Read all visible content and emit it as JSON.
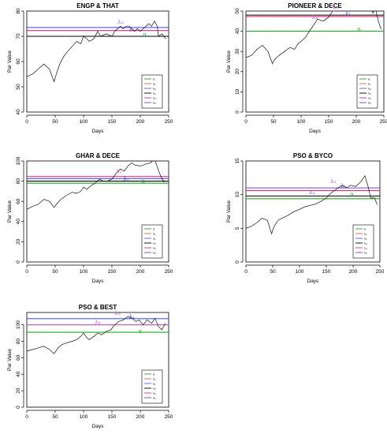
{
  "figure": {
    "width": 491,
    "height": 550
  },
  "chart_data": [
    {
      "type": "line",
      "title": "ENGP & THAT",
      "xlabel": "Days",
      "ylabel": "Par Value",
      "xlim": [
        0,
        250
      ],
      "ylim": [
        40,
        80
      ],
      "xticks": [
        0,
        50,
        100,
        150,
        200,
        250
      ],
      "yticks": [
        40,
        50,
        60,
        70,
        80
      ],
      "series": [
        {
          "values": [
            [
              0,
              54
            ],
            [
              10,
              55
            ],
            [
              20,
              57
            ],
            [
              30,
              59
            ],
            [
              40,
              57
            ],
            [
              48,
              52
            ],
            [
              52,
              55
            ],
            [
              58,
              59
            ],
            [
              65,
              62
            ],
            [
              72,
              64
            ],
            [
              80,
              66
            ],
            [
              88,
              68
            ],
            [
              95,
              67
            ],
            [
              100,
              70
            ],
            [
              106,
              69
            ],
            [
              110,
              68
            ],
            [
              118,
              69
            ],
            [
              125,
              72
            ],
            [
              130,
              70
            ],
            [
              140,
              71
            ],
            [
              150,
              70
            ],
            [
              155,
              72
            ],
            [
              160,
              73
            ],
            [
              165,
              74
            ],
            [
              170,
              73
            ],
            [
              175,
              74
            ],
            [
              180,
              74
            ],
            [
              185,
              73
            ],
            [
              190,
              72
            ],
            [
              195,
              73
            ],
            [
              200,
              72
            ],
            [
              205,
              73
            ],
            [
              210,
              74
            ],
            [
              215,
              75
            ],
            [
              220,
              74
            ],
            [
              225,
              76
            ],
            [
              230,
              74
            ],
            [
              232,
              70
            ],
            [
              238,
              71
            ],
            [
              245,
              69
            ]
          ]
        }
      ],
      "hlines": [
        {
          "y": 73.5,
          "color": "#5555ff"
        },
        {
          "y": 72.3,
          "color": "#dd2b85"
        },
        {
          "y": 70.0,
          "color": "#000000"
        }
      ],
      "annotations": [
        {
          "x": 165,
          "y": 75,
          "text": "λ₃",
          "color": "#c64ac6"
        },
        {
          "x": 185,
          "y": 72,
          "text": "λ₁",
          "color": "#2b2bcc"
        },
        {
          "x": 208,
          "y": 70,
          "text": "α",
          "color": "#22aa22"
        }
      ],
      "legend": {
        "position": "bottom-right",
        "entries": [
          "α",
          "λ₁",
          "λ₂",
          "λ₃",
          "λ₄",
          "λ₅"
        ],
        "colors": [
          "#22aa22",
          "#ee5555",
          "#5555ff",
          "#000000",
          "#dd2b85",
          "#7a3fcf"
        ]
      }
    },
    {
      "type": "line",
      "title": "PIONEER & DECE",
      "xlabel": "Days",
      "ylabel": "Par Value",
      "xlim": [
        0,
        250
      ],
      "ylim": [
        0,
        50
      ],
      "xticks": [
        0,
        50,
        100,
        150,
        200,
        250
      ],
      "yticks": [
        0,
        10,
        20,
        30,
        40,
        50
      ],
      "series": [
        {
          "values": [
            [
              0,
              27
            ],
            [
              10,
              28
            ],
            [
              20,
              31
            ],
            [
              30,
              33
            ],
            [
              40,
              30
            ],
            [
              48,
              24
            ],
            [
              52,
              26
            ],
            [
              60,
              28
            ],
            [
              70,
              30
            ],
            [
              80,
              32
            ],
            [
              88,
              31
            ],
            [
              95,
              34
            ],
            [
              100,
              35
            ],
            [
              108,
              37
            ],
            [
              115,
              40
            ],
            [
              120,
              42
            ],
            [
              125,
              44
            ],
            [
              130,
              46
            ],
            [
              140,
              45
            ],
            [
              150,
              47
            ],
            [
              155,
              49
            ],
            [
              160,
              52
            ],
            [
              168,
              50
            ],
            [
              175,
              53
            ],
            [
              180,
              52
            ],
            [
              188,
              51
            ],
            [
              195,
              50
            ],
            [
              200,
              51
            ],
            [
              210,
              50
            ],
            [
              218,
              52
            ],
            [
              225,
              55
            ],
            [
              230,
              49
            ],
            [
              235,
              51
            ],
            [
              240,
              45
            ],
            [
              245,
              41
            ]
          ]
        }
      ],
      "hlines": [
        {
          "y": 48.0,
          "color": "#000000"
        },
        {
          "y": 47.3,
          "color": "#dd2b85"
        },
        {
          "y": 40.0,
          "color": "#22aa22"
        }
      ],
      "annotations": [
        {
          "x": 125,
          "y": 46,
          "text": "λ₄",
          "color": "#c64ac6"
        },
        {
          "x": 163,
          "y": 51,
          "text": "λ₃",
          "color": "#c64ac6"
        },
        {
          "x": 185,
          "y": 48,
          "text": "λ₁",
          "color": "#2b2bcc"
        },
        {
          "x": 205,
          "y": 40,
          "text": "α",
          "color": "#22aa22"
        }
      ],
      "legend": {
        "position": "bottom-right",
        "entries": [
          "α",
          "λ₁",
          "λ₂",
          "λ₃",
          "λ₄",
          "λ₅"
        ],
        "colors": [
          "#22aa22",
          "#ee5555",
          "#5555ff",
          "#000000",
          "#dd2b85",
          "#7a3fcf"
        ]
      }
    },
    {
      "type": "line",
      "title": "GHAR & DECE",
      "xlabel": "Days",
      "ylabel": "Par Value",
      "xlim": [
        0,
        250
      ],
      "ylim": [
        0,
        100
      ],
      "xticks": [
        0,
        50,
        100,
        150,
        200,
        250
      ],
      "yticks": [
        0,
        20,
        40,
        60,
        80,
        100
      ],
      "series": [
        {
          "values": [
            [
              0,
              52
            ],
            [
              10,
              55
            ],
            [
              20,
              57
            ],
            [
              30,
              62
            ],
            [
              40,
              60
            ],
            [
              48,
              54
            ],
            [
              52,
              57
            ],
            [
              60,
              62
            ],
            [
              70,
              66
            ],
            [
              80,
              69
            ],
            [
              88,
              68
            ],
            [
              95,
              70
            ],
            [
              100,
              74
            ],
            [
              106,
              72
            ],
            [
              112,
              75
            ],
            [
              120,
              78
            ],
            [
              128,
              82
            ],
            [
              135,
              80
            ],
            [
              142,
              80
            ],
            [
              150,
              82
            ],
            [
              158,
              88
            ],
            [
              165,
              92
            ],
            [
              172,
              90
            ],
            [
              178,
              95
            ],
            [
              185,
              98
            ],
            [
              190,
              96
            ],
            [
              200,
              95
            ],
            [
              210,
              97
            ],
            [
              218,
              98
            ],
            [
              225,
              102
            ],
            [
              230,
              94
            ],
            [
              236,
              85
            ],
            [
              242,
              79
            ]
          ]
        }
      ],
      "hlines": [
        {
          "y": 84.5,
          "color": "#dd2b85"
        },
        {
          "y": 82.5,
          "color": "#5555ff"
        },
        {
          "y": 80.0,
          "color": "#000000"
        },
        {
          "y": 78.0,
          "color": "#22aa22"
        }
      ],
      "annotations": [
        {
          "x": 162,
          "y": 88,
          "text": "λ₃",
          "color": "#c64ac6"
        },
        {
          "x": 175,
          "y": 81,
          "text": "λ₁",
          "color": "#2b2bcc"
        },
        {
          "x": 205,
          "y": 78,
          "text": "α",
          "color": "#22aa22"
        }
      ],
      "legend": {
        "position": "bottom-right",
        "entries": [
          "α",
          "λ₁",
          "λ₂",
          "λ₃",
          "λ₄",
          "λ₅"
        ],
        "colors": [
          "#22aa22",
          "#ee5555",
          "#5555ff",
          "#000000",
          "#dd2b85",
          "#7a3fcf"
        ]
      }
    },
    {
      "type": "line",
      "title": "PSO & BYCO",
      "xlabel": "Days",
      "ylabel": "Par Value",
      "xlim": [
        0,
        250
      ],
      "ylim": [
        0,
        15
      ],
      "xticks": [
        0,
        50,
        100,
        150,
        200,
        250
      ],
      "yticks": [
        0,
        5,
        10,
        15
      ],
      "series": [
        {
          "values": [
            [
              0,
              5
            ],
            [
              10,
              5.3
            ],
            [
              20,
              5.8
            ],
            [
              30,
              6.5
            ],
            [
              40,
              6.2
            ],
            [
              48,
              4.2
            ],
            [
              52,
              5.2
            ],
            [
              60,
              6.2
            ],
            [
              70,
              6.6
            ],
            [
              80,
              7.0
            ],
            [
              90,
              7.5
            ],
            [
              100,
              7.8
            ],
            [
              110,
              8.2
            ],
            [
              120,
              8.4
            ],
            [
              130,
              8.6
            ],
            [
              140,
              9.0
            ],
            [
              150,
              9.5
            ],
            [
              158,
              10.2
            ],
            [
              165,
              10.6
            ],
            [
              172,
              11.0
            ],
            [
              180,
              11.4
            ],
            [
              188,
              11.0
            ],
            [
              195,
              11.4
            ],
            [
              205,
              11.2
            ],
            [
              215,
              12.0
            ],
            [
              222,
              12.8
            ],
            [
              228,
              11.2
            ],
            [
              233,
              9.5
            ],
            [
              240,
              9.5
            ],
            [
              245,
              8.5
            ]
          ]
        }
      ],
      "hlines": [
        {
          "y": 11.0,
          "color": "#7a3fcf"
        },
        {
          "y": 10.6,
          "color": "#dd2b85"
        },
        {
          "y": 9.8,
          "color": "#000000"
        },
        {
          "y": 9.4,
          "color": "#22aa22"
        }
      ],
      "annotations": [
        {
          "x": 123,
          "y": 10.1,
          "text": "λ₄",
          "color": "#c64ac6"
        },
        {
          "x": 163,
          "y": 11.7,
          "text": "λ₃",
          "color": "#c64ac6"
        },
        {
          "x": 182,
          "y": 11.0,
          "text": "λ₁",
          "color": "#2b2bcc"
        },
        {
          "x": 198,
          "y": 9.8,
          "text": "α",
          "color": "#22aa22"
        }
      ],
      "legend": {
        "position": "bottom-right",
        "entries": [
          "α",
          "λ₁",
          "λ₂",
          "λ₃",
          "λ₄",
          "λ₅"
        ],
        "colors": [
          "#22aa22",
          "#ee5555",
          "#5555ff",
          "#000000",
          "#dd2b85",
          "#7a3fcf"
        ]
      }
    },
    {
      "type": "line",
      "title": "PSO & BEST",
      "xlabel": "Days",
      "ylabel": "Par Value",
      "xlim": [
        0,
        250
      ],
      "ylim": [
        0,
        115
      ],
      "xticks": [
        0,
        50,
        100,
        150,
        200,
        250
      ],
      "yticks": [
        0,
        20,
        40,
        60,
        80,
        100
      ],
      "series": [
        {
          "values": [
            [
              0,
              68
            ],
            [
              10,
              70
            ],
            [
              20,
              72
            ],
            [
              30,
              74
            ],
            [
              40,
              70
            ],
            [
              48,
              65
            ],
            [
              55,
              72
            ],
            [
              62,
              76
            ],
            [
              70,
              78
            ],
            [
              80,
              80
            ],
            [
              88,
              82
            ],
            [
              95,
              86
            ],
            [
              100,
              90
            ],
            [
              105,
              85
            ],
            [
              110,
              82
            ],
            [
              118,
              86
            ],
            [
              125,
              90
            ],
            [
              132,
              88
            ],
            [
              140,
              92
            ],
            [
              148,
              94
            ],
            [
              155,
              100
            ],
            [
              162,
              104
            ],
            [
              170,
              106
            ],
            [
              178,
              110
            ],
            [
              186,
              108
            ],
            [
              192,
              104
            ],
            [
              198,
              106
            ],
            [
              205,
              100
            ],
            [
              212,
              106
            ],
            [
              220,
              102
            ],
            [
              226,
              108
            ],
            [
              232,
              98
            ],
            [
              238,
              94
            ],
            [
              244,
              102
            ]
          ]
        }
      ],
      "hlines": [
        {
          "y": 107.5,
          "color": "#5555ff"
        },
        {
          "y": 100.0,
          "color": "#c64ac6"
        },
        {
          "y": 91.0,
          "color": "#22aa22"
        }
      ],
      "annotations": [
        {
          "x": 125,
          "y": 101,
          "text": "λ₄",
          "color": "#c64ac6"
        },
        {
          "x": 160,
          "y": 112,
          "text": "λ₃",
          "color": "#c64ac6"
        },
        {
          "x": 185,
          "y": 108,
          "text": "λ₁",
          "color": "#2b2bcc"
        },
        {
          "x": 200,
          "y": 90,
          "text": "α",
          "color": "#22aa22"
        }
      ],
      "legend": {
        "position": "bottom-right",
        "entries": [
          "α",
          "λ₁",
          "λ₂",
          "λ₃",
          "λ₄",
          "λ₅"
        ],
        "colors": [
          "#22aa22",
          "#ee5555",
          "#5555ff",
          "#000000",
          "#dd2b85",
          "#7a3fcf"
        ]
      }
    }
  ]
}
